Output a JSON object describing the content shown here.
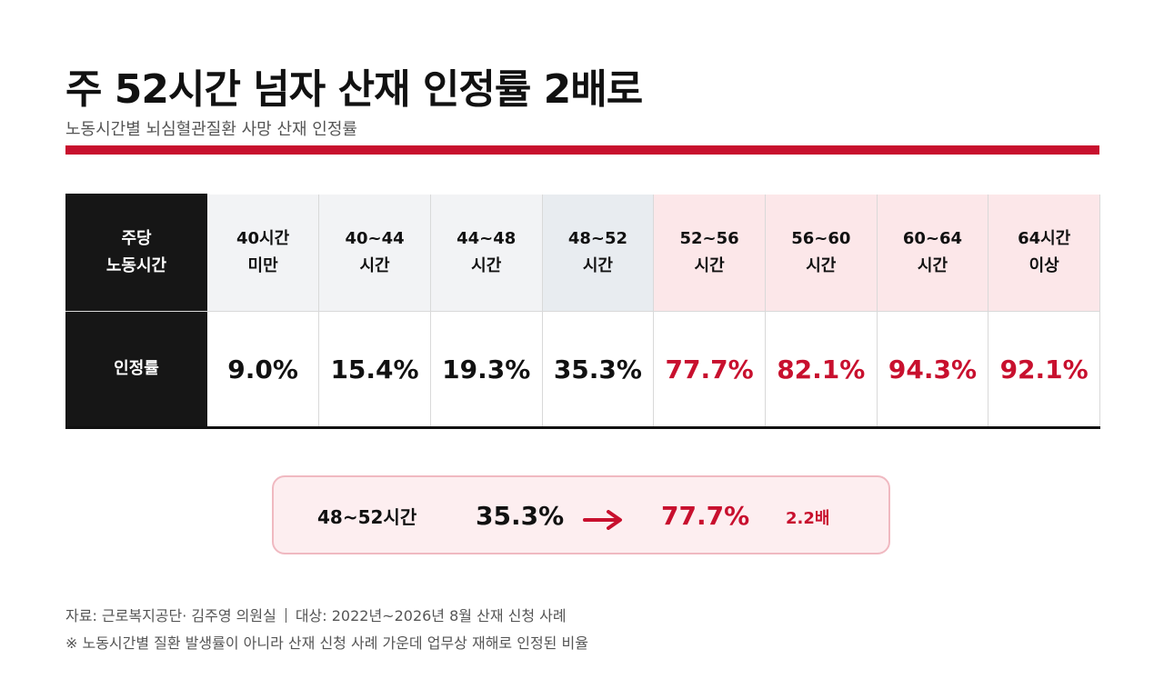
{
  "header": {
    "title": "주 52시간 넘자 산재 인정률 2배로",
    "subtitle": "노동시간별 뇌심혈관질환 사망 산재 인정률"
  },
  "table": {
    "row_header_lines": [
      "주당",
      "노동시간"
    ],
    "value_row_header": "인정률"
  },
  "comparison": {
    "label": "48~52시간",
    "from_value": "35.3%",
    "to_value": "77.7%",
    "ratio": "2.2배"
  },
  "footer": {
    "source": "자료: 근로복지공단· 김주영 의원실",
    "scope": "대상: 2022년~2026년 8월 산재 신청 사례",
    "note": "※ 노동시간별 질환 발생률이 아니라 산재 신청 사례 가운데 업무상 재해로 인정된 비율"
  },
  "colors": {
    "accent": "#c8102e",
    "header_dark": "#161616",
    "under_40": "#f2f3f5",
    "band_48_52": "#e8ecf0",
    "over_52": "#fce7e9"
  },
  "chart_data": {
    "type": "table",
    "title": "주 52시간 넘자 산재 인정률 2배로",
    "subtitle": "노동시간별 뇌심혈관질환 사망 산재 인정률",
    "categories": [
      [
        "40시간",
        "미만"
      ],
      [
        "40~44",
        "시간"
      ],
      [
        "44~48",
        "시간"
      ],
      [
        "48~52",
        "시간"
      ],
      [
        "52~56",
        "시간"
      ],
      [
        "56~60",
        "시간"
      ],
      [
        "60~64",
        "시간"
      ],
      [
        "64시간",
        "이상"
      ]
    ],
    "values": [
      9.0,
      15.4,
      19.3,
      35.3,
      77.7,
      82.1,
      94.3,
      92.1
    ],
    "value_labels": [
      "9.0%",
      "15.4%",
      "19.3%",
      "35.3%",
      "77.7%",
      "82.1%",
      "94.3%",
      "92.1%"
    ],
    "unit": "%",
    "highlight": [
      "gray",
      "gray",
      "gray",
      "blue",
      "pink",
      "pink",
      "pink",
      "pink"
    ]
  }
}
